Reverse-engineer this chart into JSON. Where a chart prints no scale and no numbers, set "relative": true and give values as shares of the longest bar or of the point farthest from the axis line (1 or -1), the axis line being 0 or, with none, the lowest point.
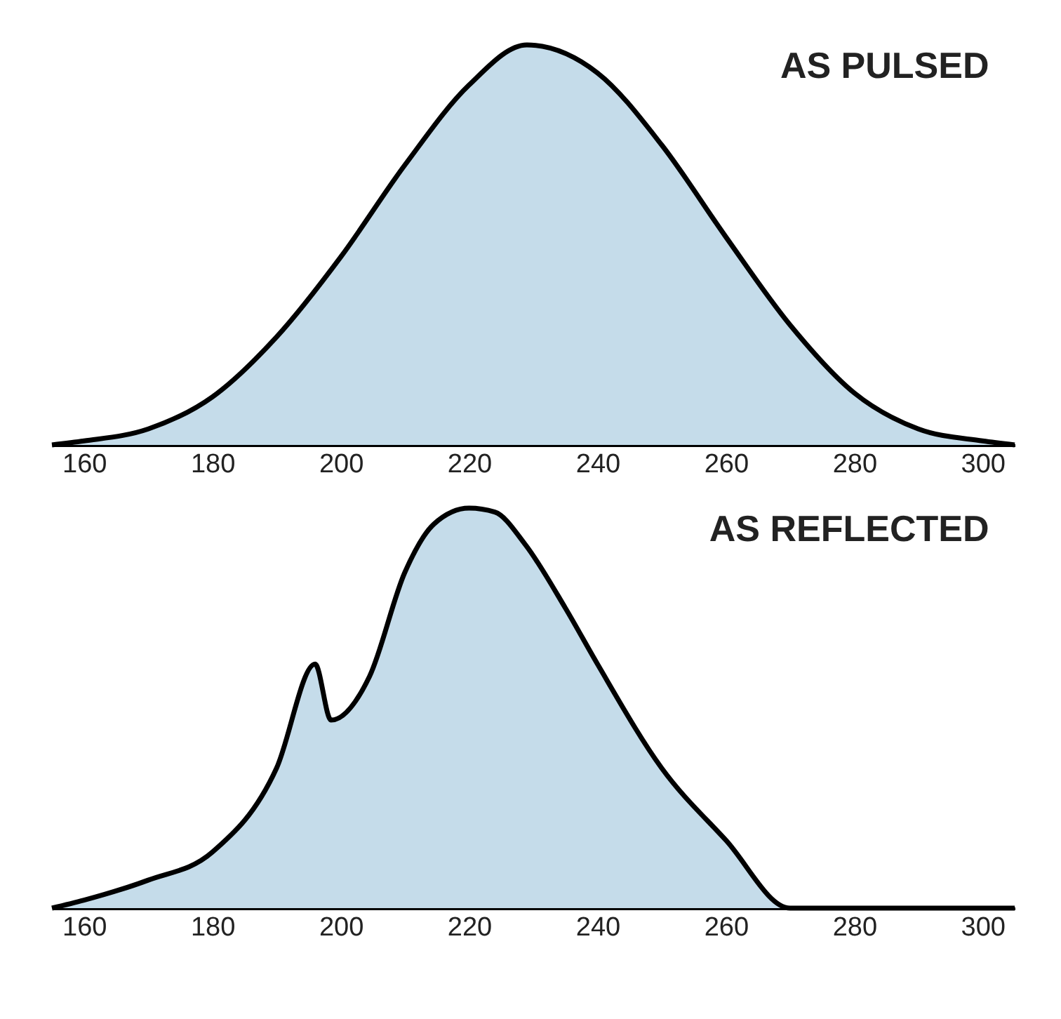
{
  "chart_data": [
    {
      "type": "area",
      "title": "AS PULSED",
      "relative": true,
      "xlim": [
        155,
        305
      ],
      "xticks": [
        160,
        180,
        200,
        220,
        240,
        260,
        280,
        300
      ],
      "grid": false,
      "series": [
        {
          "color": "#c5dcea",
          "x": [
            155,
            160,
            170,
            180,
            190,
            200,
            210,
            220,
            229,
            240,
            250,
            260,
            270,
            280,
            290,
            300,
            305
          ],
          "values": [
            0,
            0.01,
            0.04,
            0.12,
            0.27,
            0.47,
            0.7,
            0.9,
            1.0,
            0.93,
            0.75,
            0.52,
            0.3,
            0.13,
            0.04,
            0.01,
            0
          ]
        }
      ]
    },
    {
      "type": "area",
      "title": "AS REFLECTED",
      "relative": true,
      "xlim": [
        155,
        305
      ],
      "xticks": [
        160,
        180,
        200,
        220,
        240,
        260,
        280,
        300
      ],
      "grid": false,
      "series": [
        {
          "color": "#c5dcea",
          "x": [
            155,
            160,
            170,
            180,
            190,
            196,
            198.5,
            204.5,
            210,
            214.5,
            220,
            224,
            228.7,
            235,
            240,
            250,
            260,
            270,
            305
          ],
          "values": [
            0,
            0.02,
            0.07,
            0.14,
            0.35,
            0.61,
            0.47,
            0.58,
            0.84,
            0.96,
            1.0,
            0.99,
            0.91,
            0.75,
            0.61,
            0.35,
            0.17,
            0,
            0
          ]
        }
      ]
    }
  ]
}
